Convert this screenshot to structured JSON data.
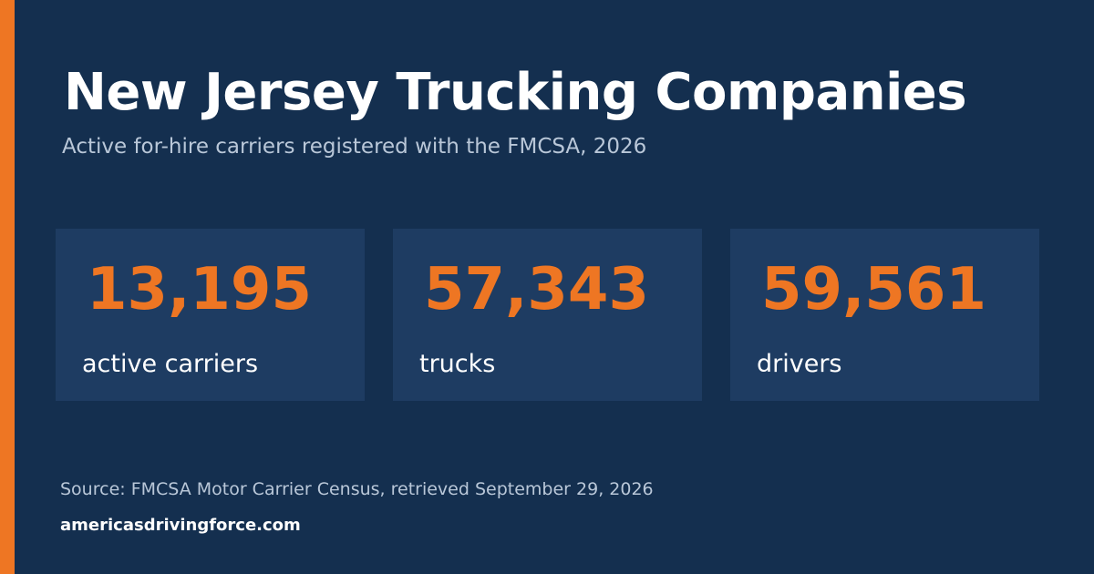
{
  "header": {
    "title": "New Jersey Trucking Companies",
    "subtitle": "Active for-hire carriers registered with the FMCSA, 2026"
  },
  "stats": [
    {
      "value": "13,195",
      "label": "active carriers"
    },
    {
      "value": "57,343",
      "label": "trucks"
    },
    {
      "value": "59,561",
      "label": "drivers"
    }
  ],
  "footer": {
    "source": "Source: FMCSA Motor Carrier Census, retrieved September 29, 2026",
    "site": "americasdrivingforce.com"
  },
  "colors": {
    "background": "#142f4f",
    "tile": "#1e3c62",
    "accent": "#ee7623",
    "text": "#ffffff",
    "muted_text": "#b9c7d8"
  }
}
